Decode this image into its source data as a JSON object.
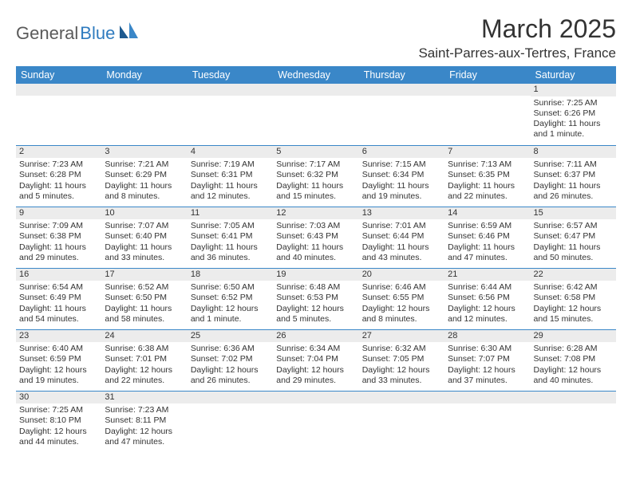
{
  "logo": {
    "part1": "General",
    "part2": "Blue"
  },
  "title": "March 2025",
  "location": "Saint-Parres-aux-Tertres, France",
  "colors": {
    "header_bg": "#3a87c8",
    "header_text": "#ffffff",
    "daynum_bg": "#ececec",
    "border": "#3a87c8",
    "logo_gray": "#5a5a5a",
    "logo_blue": "#2f7bbf"
  },
  "fonts": {
    "title_size": 32,
    "location_size": 17,
    "header_size": 12.5,
    "cell_size": 10.5
  },
  "weekdays": [
    "Sunday",
    "Monday",
    "Tuesday",
    "Wednesday",
    "Thursday",
    "Friday",
    "Saturday"
  ],
  "weeks": [
    [
      {
        "day": "",
        "lines": []
      },
      {
        "day": "",
        "lines": []
      },
      {
        "day": "",
        "lines": []
      },
      {
        "day": "",
        "lines": []
      },
      {
        "day": "",
        "lines": []
      },
      {
        "day": "",
        "lines": []
      },
      {
        "day": "1",
        "lines": [
          "Sunrise: 7:25 AM",
          "Sunset: 6:26 PM",
          "Daylight: 11 hours and 1 minute."
        ]
      }
    ],
    [
      {
        "day": "2",
        "lines": [
          "Sunrise: 7:23 AM",
          "Sunset: 6:28 PM",
          "Daylight: 11 hours and 5 minutes."
        ]
      },
      {
        "day": "3",
        "lines": [
          "Sunrise: 7:21 AM",
          "Sunset: 6:29 PM",
          "Daylight: 11 hours and 8 minutes."
        ]
      },
      {
        "day": "4",
        "lines": [
          "Sunrise: 7:19 AM",
          "Sunset: 6:31 PM",
          "Daylight: 11 hours and 12 minutes."
        ]
      },
      {
        "day": "5",
        "lines": [
          "Sunrise: 7:17 AM",
          "Sunset: 6:32 PM",
          "Daylight: 11 hours and 15 minutes."
        ]
      },
      {
        "day": "6",
        "lines": [
          "Sunrise: 7:15 AM",
          "Sunset: 6:34 PM",
          "Daylight: 11 hours and 19 minutes."
        ]
      },
      {
        "day": "7",
        "lines": [
          "Sunrise: 7:13 AM",
          "Sunset: 6:35 PM",
          "Daylight: 11 hours and 22 minutes."
        ]
      },
      {
        "day": "8",
        "lines": [
          "Sunrise: 7:11 AM",
          "Sunset: 6:37 PM",
          "Daylight: 11 hours and 26 minutes."
        ]
      }
    ],
    [
      {
        "day": "9",
        "lines": [
          "Sunrise: 7:09 AM",
          "Sunset: 6:38 PM",
          "Daylight: 11 hours and 29 minutes."
        ]
      },
      {
        "day": "10",
        "lines": [
          "Sunrise: 7:07 AM",
          "Sunset: 6:40 PM",
          "Daylight: 11 hours and 33 minutes."
        ]
      },
      {
        "day": "11",
        "lines": [
          "Sunrise: 7:05 AM",
          "Sunset: 6:41 PM",
          "Daylight: 11 hours and 36 minutes."
        ]
      },
      {
        "day": "12",
        "lines": [
          "Sunrise: 7:03 AM",
          "Sunset: 6:43 PM",
          "Daylight: 11 hours and 40 minutes."
        ]
      },
      {
        "day": "13",
        "lines": [
          "Sunrise: 7:01 AM",
          "Sunset: 6:44 PM",
          "Daylight: 11 hours and 43 minutes."
        ]
      },
      {
        "day": "14",
        "lines": [
          "Sunrise: 6:59 AM",
          "Sunset: 6:46 PM",
          "Daylight: 11 hours and 47 minutes."
        ]
      },
      {
        "day": "15",
        "lines": [
          "Sunrise: 6:57 AM",
          "Sunset: 6:47 PM",
          "Daylight: 11 hours and 50 minutes."
        ]
      }
    ],
    [
      {
        "day": "16",
        "lines": [
          "Sunrise: 6:54 AM",
          "Sunset: 6:49 PM",
          "Daylight: 11 hours and 54 minutes."
        ]
      },
      {
        "day": "17",
        "lines": [
          "Sunrise: 6:52 AM",
          "Sunset: 6:50 PM",
          "Daylight: 11 hours and 58 minutes."
        ]
      },
      {
        "day": "18",
        "lines": [
          "Sunrise: 6:50 AM",
          "Sunset: 6:52 PM",
          "Daylight: 12 hours and 1 minute."
        ]
      },
      {
        "day": "19",
        "lines": [
          "Sunrise: 6:48 AM",
          "Sunset: 6:53 PM",
          "Daylight: 12 hours and 5 minutes."
        ]
      },
      {
        "day": "20",
        "lines": [
          "Sunrise: 6:46 AM",
          "Sunset: 6:55 PM",
          "Daylight: 12 hours and 8 minutes."
        ]
      },
      {
        "day": "21",
        "lines": [
          "Sunrise: 6:44 AM",
          "Sunset: 6:56 PM",
          "Daylight: 12 hours and 12 minutes."
        ]
      },
      {
        "day": "22",
        "lines": [
          "Sunrise: 6:42 AM",
          "Sunset: 6:58 PM",
          "Daylight: 12 hours and 15 minutes."
        ]
      }
    ],
    [
      {
        "day": "23",
        "lines": [
          "Sunrise: 6:40 AM",
          "Sunset: 6:59 PM",
          "Daylight: 12 hours and 19 minutes."
        ]
      },
      {
        "day": "24",
        "lines": [
          "Sunrise: 6:38 AM",
          "Sunset: 7:01 PM",
          "Daylight: 12 hours and 22 minutes."
        ]
      },
      {
        "day": "25",
        "lines": [
          "Sunrise: 6:36 AM",
          "Sunset: 7:02 PM",
          "Daylight: 12 hours and 26 minutes."
        ]
      },
      {
        "day": "26",
        "lines": [
          "Sunrise: 6:34 AM",
          "Sunset: 7:04 PM",
          "Daylight: 12 hours and 29 minutes."
        ]
      },
      {
        "day": "27",
        "lines": [
          "Sunrise: 6:32 AM",
          "Sunset: 7:05 PM",
          "Daylight: 12 hours and 33 minutes."
        ]
      },
      {
        "day": "28",
        "lines": [
          "Sunrise: 6:30 AM",
          "Sunset: 7:07 PM",
          "Daylight: 12 hours and 37 minutes."
        ]
      },
      {
        "day": "29",
        "lines": [
          "Sunrise: 6:28 AM",
          "Sunset: 7:08 PM",
          "Daylight: 12 hours and 40 minutes."
        ]
      }
    ],
    [
      {
        "day": "30",
        "lines": [
          "Sunrise: 7:25 AM",
          "Sunset: 8:10 PM",
          "Daylight: 12 hours and 44 minutes."
        ]
      },
      {
        "day": "31",
        "lines": [
          "Sunrise: 7:23 AM",
          "Sunset: 8:11 PM",
          "Daylight: 12 hours and 47 minutes."
        ]
      },
      {
        "day": "",
        "lines": []
      },
      {
        "day": "",
        "lines": []
      },
      {
        "day": "",
        "lines": []
      },
      {
        "day": "",
        "lines": []
      },
      {
        "day": "",
        "lines": []
      }
    ]
  ]
}
